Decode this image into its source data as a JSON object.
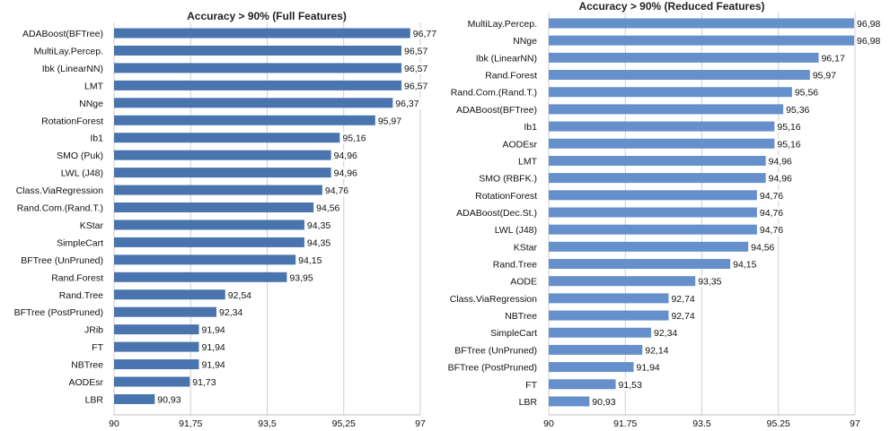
{
  "chart_data": [
    {
      "type": "bar",
      "orientation": "horizontal",
      "title": "Accuracy > 90% (Full Features)",
      "xlim": [
        90,
        97
      ],
      "tick_values": [
        90,
        91.75,
        93.5,
        95.25,
        97
      ],
      "tick_labels": [
        "90",
        "91,75",
        "93,5",
        "95,25",
        "97"
      ],
      "grid": true,
      "bar_color": "#4a74ad",
      "categories": [
        "ADABoost(BFTree)",
        "MultiLay.Percep.",
        "Ibk (LinearNN)",
        "LMT",
        "NNge",
        "RotationForest",
        "Ib1",
        "SMO (Puk)",
        "LWL (J48)",
        "Class.ViaRegression",
        "Rand.Com.(Rand.T.)",
        "KStar",
        "SimpleCart",
        "BFTree (UnPruned)",
        "Rand.Forest",
        "Rand.Tree",
        "BFTree (PostPruned)",
        "JRib",
        "FT",
        "NBTree",
        "AODEsr",
        "LBR"
      ],
      "values": [
        96.77,
        96.57,
        96.57,
        96.57,
        96.37,
        95.97,
        95.16,
        94.96,
        94.96,
        94.76,
        94.56,
        94.35,
        94.35,
        94.15,
        93.95,
        92.54,
        92.34,
        91.94,
        91.94,
        91.94,
        91.73,
        90.93
      ],
      "value_labels": [
        "96,77",
        "96,57",
        "96,57",
        "96,57",
        "96,37",
        "95,97",
        "95,16",
        "94,96",
        "94,96",
        "94,76",
        "94,56",
        "94,35",
        "94,35",
        "94,15",
        "93,95",
        "92,54",
        "92,34",
        "91,94",
        "91,94",
        "91,94",
        "91,73",
        "90,93"
      ]
    },
    {
      "type": "bar",
      "orientation": "horizontal",
      "title": "Accuracy > 90% (Reduced Features)",
      "xlim": [
        90,
        97
      ],
      "tick_values": [
        90,
        91.75,
        93.5,
        95.25,
        97
      ],
      "tick_labels": [
        "90",
        "91.75",
        "93.5",
        "95.25",
        "97"
      ],
      "grid": true,
      "bar_color": "#6690cc",
      "categories": [
        "MultiLay.Percep.",
        "NNge",
        "Ibk (LinearNN)",
        "Rand.Forest",
        "Rand.Com.(Rand.T.)",
        "ADABoost(BFTree)",
        "Ib1",
        "AODEsr",
        "LMT",
        "SMO (RBFK.)",
        "RotationForest",
        "ADABoost(Dec.St.)",
        "LWL (J48)",
        "KStar",
        "Rand.Tree",
        "AODE",
        "Class.ViaRegression",
        "NBTree",
        "SimpleCart",
        "BFTree (UnPruned)",
        "BFTree (PostPruned)",
        "FT",
        "LBR"
      ],
      "values": [
        96.98,
        96.98,
        96.17,
        95.97,
        95.56,
        95.36,
        95.16,
        95.16,
        94.96,
        94.96,
        94.76,
        94.76,
        94.76,
        94.56,
        94.15,
        93.35,
        92.74,
        92.74,
        92.34,
        92.14,
        91.94,
        91.53,
        90.93
      ],
      "value_labels": [
        "96,98",
        "96,98",
        "96,17",
        "95,97",
        "95,56",
        "95,36",
        "95,16",
        "95,16",
        "94,96",
        "94,96",
        "94,76",
        "94,76",
        "94,76",
        "94,56",
        "94,15",
        "93,35",
        "92,74",
        "92,74",
        "92,34",
        "92,14",
        "91,94",
        "91,53",
        "90,93"
      ]
    }
  ]
}
